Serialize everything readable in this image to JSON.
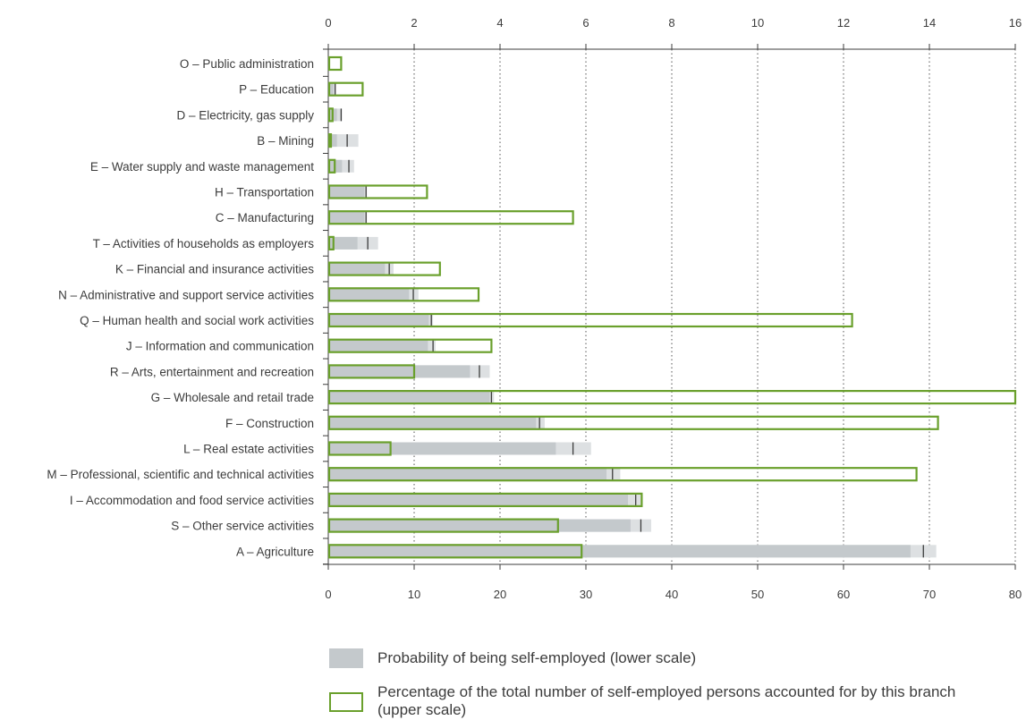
{
  "colors": {
    "probability_fill": "#c4c9cc",
    "probability_range": "#dde0e2",
    "share_outline": "#6aa02c",
    "axis": "#3c3c3c"
  },
  "chart_data": {
    "type": "bar",
    "orientation": "horizontal",
    "upper_axis": {
      "ticks": [
        "0",
        "2",
        "4",
        "6",
        "8",
        "10",
        "12",
        "14",
        "16"
      ],
      "range": [
        0,
        16
      ]
    },
    "lower_axis": {
      "ticks": [
        "0",
        "10",
        "20",
        "30",
        "40",
        "50",
        "60",
        "70",
        "80"
      ],
      "range": [
        0,
        80
      ]
    },
    "grid": "dotted vertical lines",
    "categories": [
      "O – Public administration",
      "P – Education",
      "D – Electricity, gas supply",
      "B – Mining",
      "E – Water supply and waste management",
      "H – Transportation",
      "C – Manufacturing",
      "T – Activities of households as employers",
      "K – Financial and insurance activities",
      "N – Administrative and support service activities",
      "Q – Human health and social work activities",
      "J – Information and communication",
      "R – Arts, entertainment and recreation",
      "G – Wholesale and retail trade",
      "F – Construction",
      "L – Real estate activities",
      "M – Professional, scientific and technical activities",
      "I – Accommodation and food service activities",
      "S – Other service activities",
      "A – Agriculture"
    ],
    "series": [
      {
        "name": "Probability of being self-employed (lower scale)",
        "scale": "lower",
        "values": [
          0.0,
          0.8,
          1.5,
          2.2,
          2.4,
          4.4,
          4.4,
          4.6,
          7.1,
          9.9,
          12.0,
          12.2,
          17.6,
          19.0,
          24.6,
          28.5,
          33.1,
          35.8,
          36.4,
          69.3
        ],
        "range_low": [
          0.0,
          0.6,
          1.0,
          1.0,
          1.6,
          4.2,
          4.2,
          3.4,
          6.6,
          9.4,
          11.7,
          11.6,
          16.5,
          18.8,
          24.2,
          26.5,
          32.4,
          34.9,
          35.2,
          67.8
        ],
        "range_high": [
          0.0,
          0.9,
          1.6,
          3.5,
          3.0,
          4.5,
          4.5,
          5.8,
          7.6,
          10.5,
          12.2,
          12.5,
          18.8,
          19.3,
          25.2,
          30.6,
          34.0,
          36.5,
          37.6,
          70.8
        ]
      },
      {
        "name": "Percentage of the total number of self-employed persons accounted for by this branch (upper scale)",
        "scale": "upper",
        "values": [
          0.3,
          0.8,
          0.1,
          0.05,
          0.15,
          2.3,
          5.7,
          0.12,
          2.6,
          3.5,
          12.2,
          3.8,
          2.0,
          16.0,
          14.2,
          1.45,
          13.7,
          7.3,
          5.35,
          5.9
        ]
      }
    ]
  },
  "legend": {
    "probability_label": "Probability of being self-employed (lower scale)",
    "share_label": "Percentage of the total number of self-employed persons accounted for by this branch (upper scale)"
  }
}
